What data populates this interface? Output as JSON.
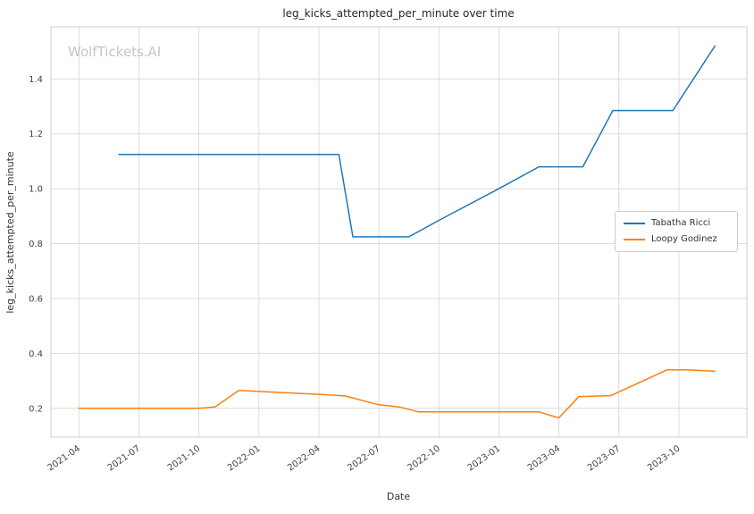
{
  "watermark": "WolfTickets.AI",
  "chart_data": {
    "type": "line",
    "title": "leg_kicks_attempted_per_minute over time",
    "xlabel": "Date",
    "ylabel": "leg_kicks_attempted_per_minute",
    "grid": true,
    "legend_position": "center right",
    "x_unit": "months since 2021-01",
    "xlim": [
      1.6,
      36.4
    ],
    "ylim": [
      0.095,
      1.59
    ],
    "x_ticks": [
      {
        "pos": 3,
        "label": "2021-04"
      },
      {
        "pos": 6,
        "label": "2021-07"
      },
      {
        "pos": 9,
        "label": "2021-10"
      },
      {
        "pos": 12,
        "label": "2022-01"
      },
      {
        "pos": 15,
        "label": "2022-04"
      },
      {
        "pos": 18,
        "label": "2022-07"
      },
      {
        "pos": 21,
        "label": "2022-10"
      },
      {
        "pos": 24,
        "label": "2023-01"
      },
      {
        "pos": 27,
        "label": "2023-04"
      },
      {
        "pos": 30,
        "label": "2023-07"
      },
      {
        "pos": 33,
        "label": "2023-10"
      }
    ],
    "y_ticks": [
      0.2,
      0.4,
      0.6,
      0.8,
      1.0,
      1.2,
      1.4
    ],
    "series": [
      {
        "name": "Tabatha Ricci",
        "color": "#1f77b4",
        "points": [
          [
            5,
            1.125
          ],
          [
            16,
            1.125
          ],
          [
            16.7,
            0.825
          ],
          [
            19.5,
            0.825
          ],
          [
            21,
            0.885
          ],
          [
            24,
            1.0
          ],
          [
            26,
            1.08
          ],
          [
            28.2,
            1.08
          ],
          [
            29.7,
            1.285
          ],
          [
            32.7,
            1.285
          ],
          [
            34.8,
            1.52
          ]
        ]
      },
      {
        "name": "Loopy Godinez",
        "color": "#ff7f0e",
        "points": [
          [
            3,
            0.2
          ],
          [
            9,
            0.2
          ],
          [
            9.8,
            0.205
          ],
          [
            11,
            0.265
          ],
          [
            13,
            0.258
          ],
          [
            15,
            0.251
          ],
          [
            16.3,
            0.245
          ],
          [
            18,
            0.213
          ],
          [
            19,
            0.205
          ],
          [
            20,
            0.187
          ],
          [
            26,
            0.187
          ],
          [
            27,
            0.165
          ],
          [
            28,
            0.243
          ],
          [
            29.6,
            0.246
          ],
          [
            32.4,
            0.34
          ],
          [
            33.4,
            0.34
          ],
          [
            34.8,
            0.335
          ]
        ]
      }
    ]
  }
}
